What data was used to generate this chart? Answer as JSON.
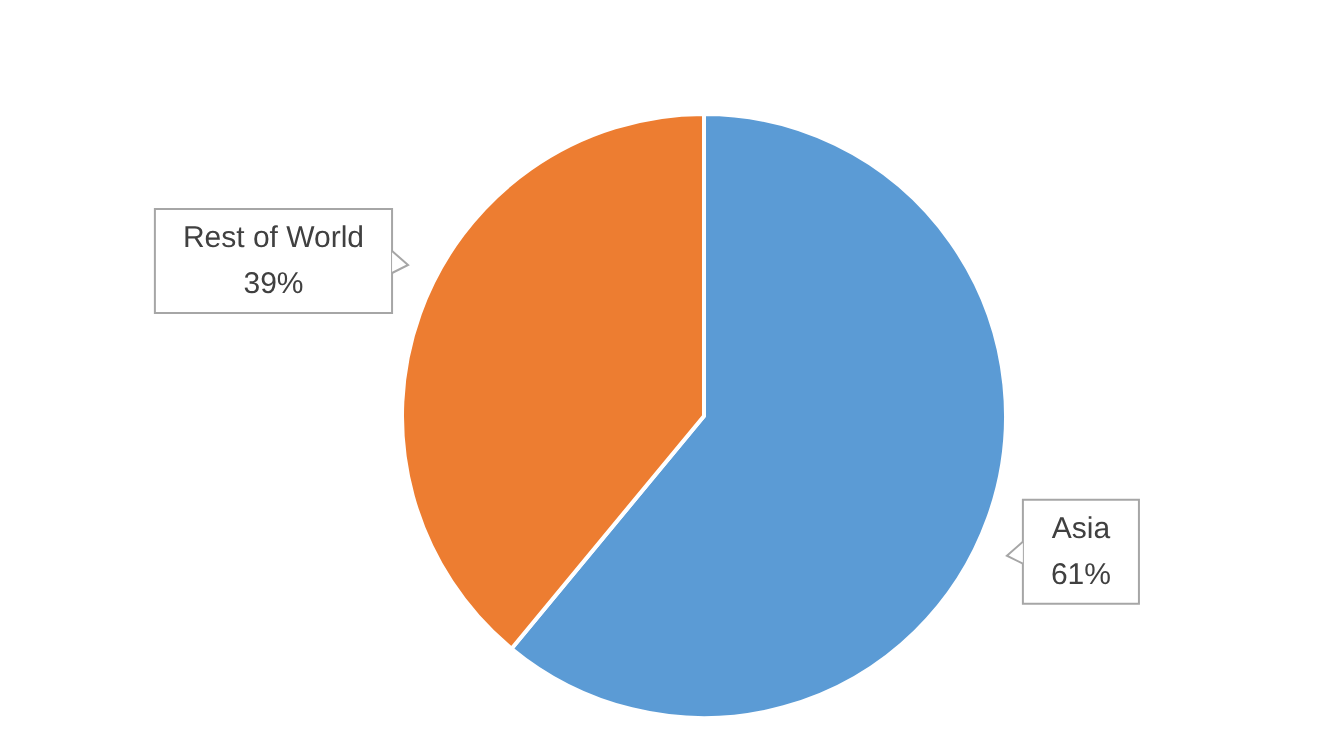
{
  "chart_data": {
    "type": "pie",
    "categories": [
      "Asia",
      "Rest of World"
    ],
    "values": [
      61,
      39
    ],
    "colors": [
      "#5b9bd5",
      "#ed7d31"
    ],
    "value_labels": [
      "61%",
      "39%"
    ],
    "legend": false
  }
}
